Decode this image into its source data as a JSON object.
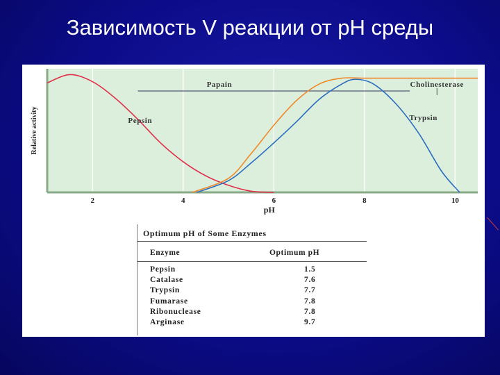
{
  "title": "Зависимость V реакции от pH среды",
  "chart_data": {
    "type": "line",
    "xlabel": "pH",
    "ylabel": "Relative activity",
    "xlim": [
      1,
      10.5
    ],
    "ylim": [
      0,
      1.05
    ],
    "x_ticks": [
      "2",
      "4",
      "6",
      "8",
      "10"
    ],
    "grid": true,
    "series": [
      {
        "name": "Pepsin",
        "color": "#e0304a",
        "x": [
          1,
          1.5,
          2,
          2.5,
          3,
          3.5,
          4,
          4.5,
          5,
          5.5,
          6
        ],
        "y": [
          0.93,
          1.0,
          0.94,
          0.8,
          0.62,
          0.42,
          0.26,
          0.14,
          0.06,
          0.01,
          0
        ]
      },
      {
        "name": "Trypsin",
        "color": "#2a6cc0",
        "x": [
          4.3,
          5,
          5.5,
          6,
          6.5,
          7,
          7.5,
          7.8,
          8.2,
          8.7,
          9.2,
          9.7,
          10.1
        ],
        "y": [
          0,
          0.1,
          0.25,
          0.42,
          0.6,
          0.79,
          0.92,
          0.96,
          0.92,
          0.75,
          0.5,
          0.18,
          0
        ]
      },
      {
        "name": "Cholinesterase",
        "color": "#f08a2a",
        "x": [
          4.2,
          5,
          5.5,
          6,
          6.5,
          7,
          7.5,
          8,
          9,
          10.5
        ],
        "y": [
          0,
          0.12,
          0.33,
          0.57,
          0.78,
          0.92,
          0.97,
          0.97,
          0.97,
          0.97
        ]
      }
    ],
    "annotations": [
      "Papain",
      "Cholinesterase",
      "Pepsin",
      "Trypsin"
    ],
    "papain_range": [
      3,
      9
    ]
  },
  "table": {
    "title": "Optimum pH of Some Enzymes",
    "col_enzyme": "Enzyme",
    "col_ph": "Optimum pH",
    "rows": [
      {
        "enzyme": "Pepsin",
        "ph": "1.5"
      },
      {
        "enzyme": "Catalase",
        "ph": "7.6"
      },
      {
        "enzyme": "Trypsin",
        "ph": "7.7"
      },
      {
        "enzyme": "Fumarase",
        "ph": "7.8"
      },
      {
        "enzyme": "Ribonuclease",
        "ph": "7.8"
      },
      {
        "enzyme": "Arginase",
        "ph": "9.7"
      }
    ]
  }
}
